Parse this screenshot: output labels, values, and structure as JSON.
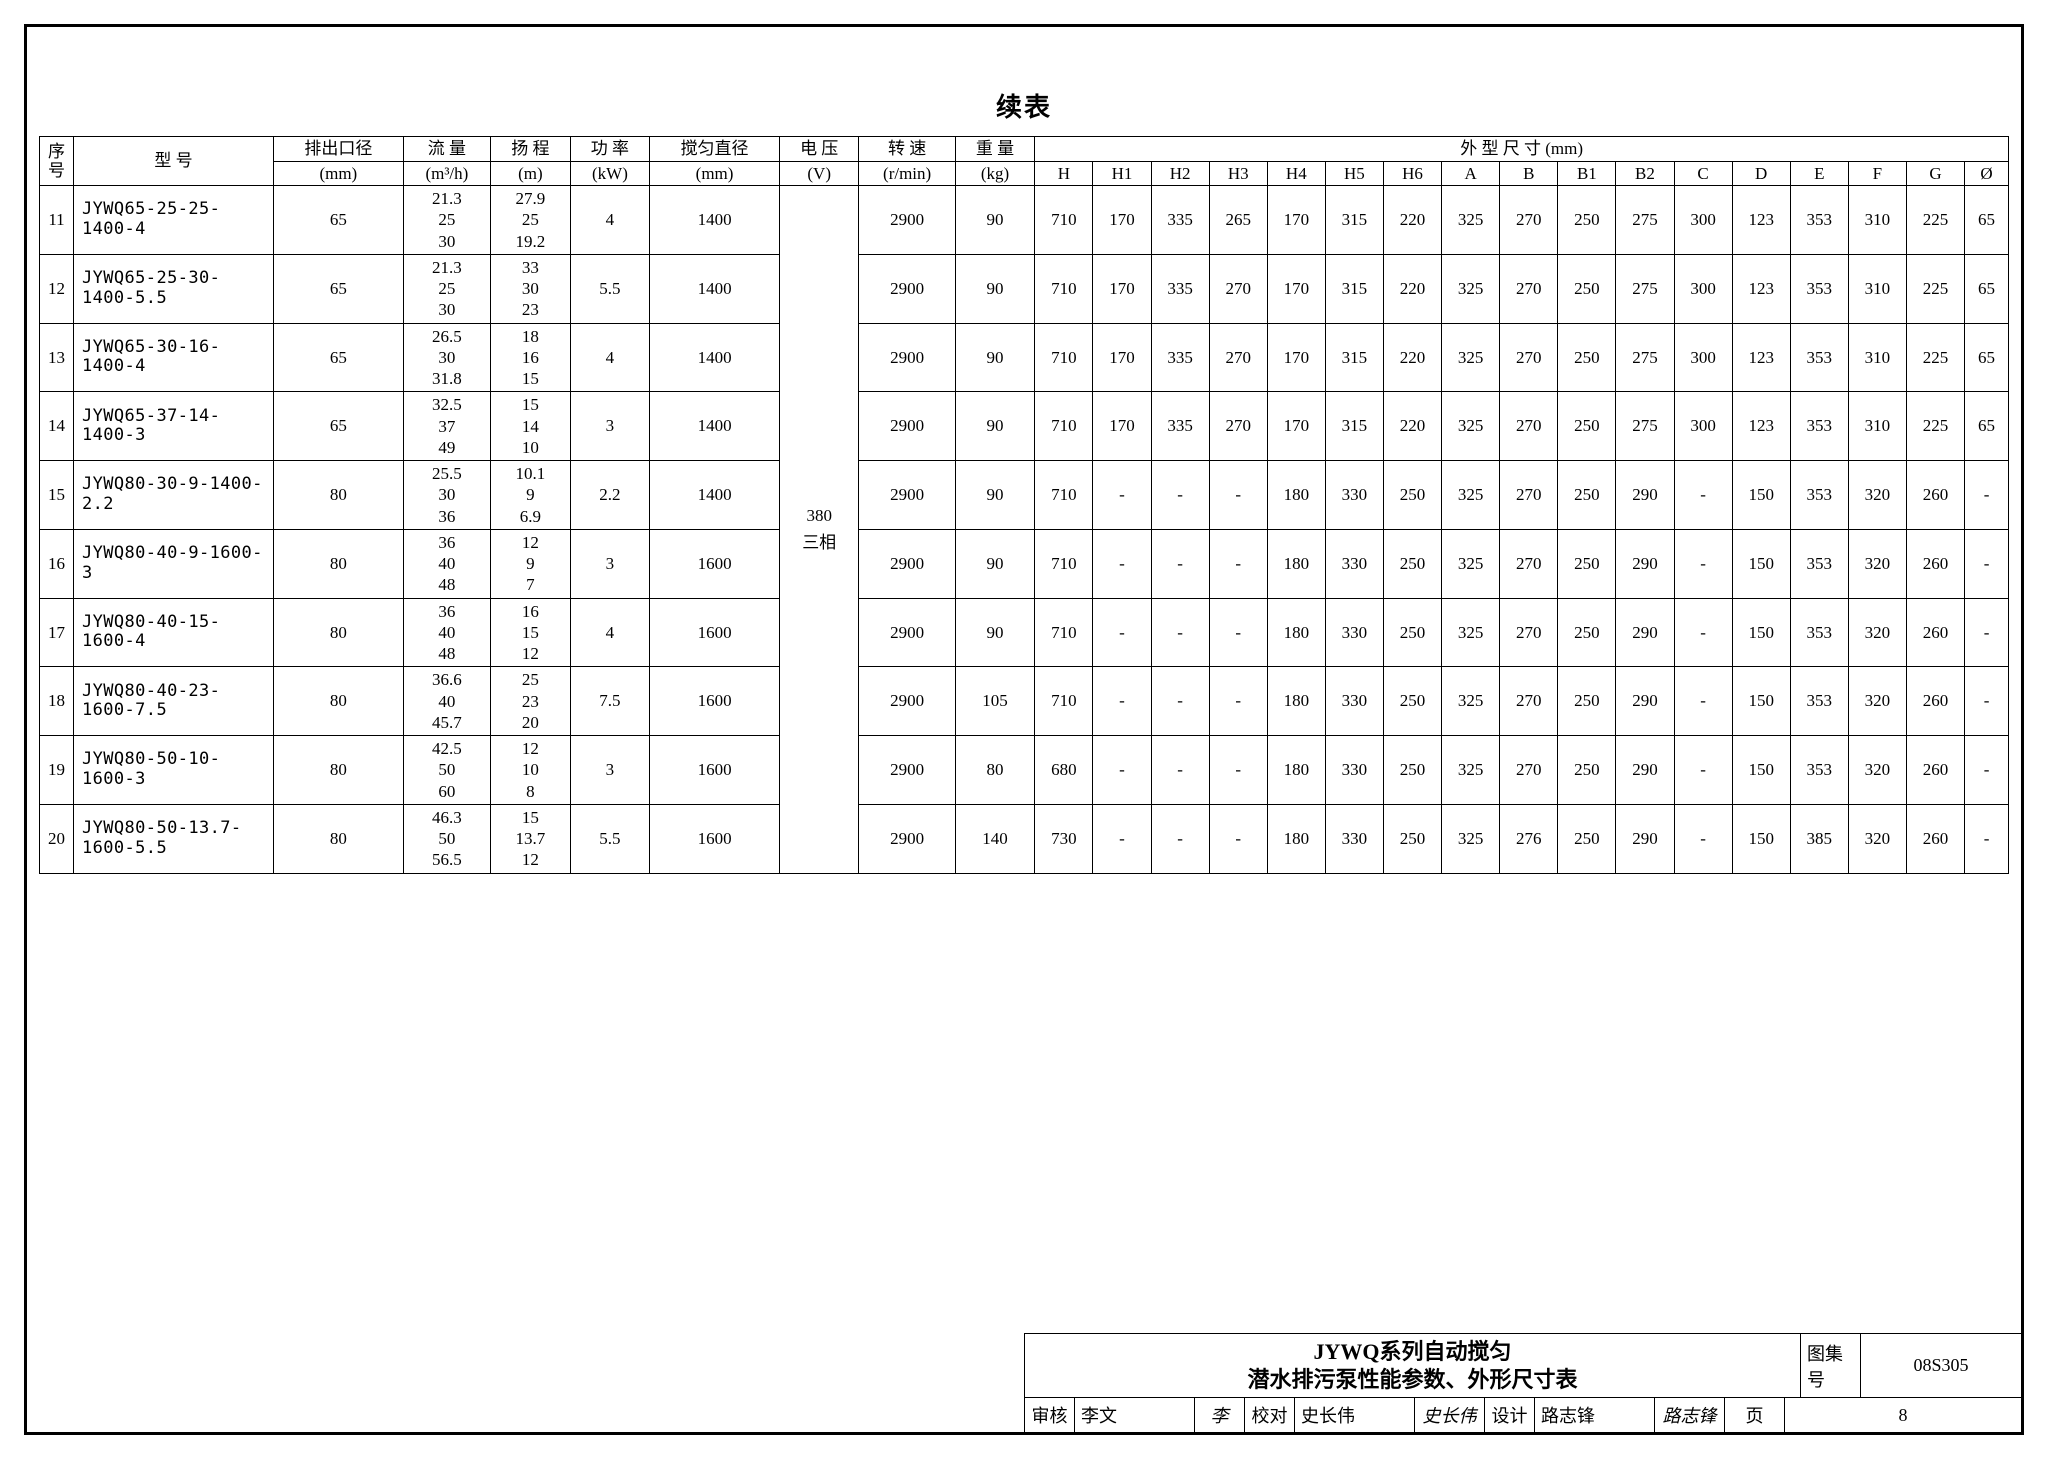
{
  "cont_title": "续表",
  "header_group_dim": "外 型 尺 寸  (mm)",
  "columns": {
    "seq": {
      "label": "序号",
      "unit": ""
    },
    "model": {
      "label": "型  号",
      "unit": ""
    },
    "outlet": {
      "label": "排出口径",
      "unit": "(mm)"
    },
    "flow": {
      "label": "流 量",
      "unit": "(m³/h)"
    },
    "head": {
      "label": "扬 程",
      "unit": "(m)"
    },
    "power": {
      "label": "功 率",
      "unit": "(kW)"
    },
    "stir": {
      "label": "搅匀直径",
      "unit": "(mm)"
    },
    "volt": {
      "label": "电 压",
      "unit": "(V)"
    },
    "speed": {
      "label": "转 速",
      "unit": "(r/min)"
    },
    "weight": {
      "label": "重 量",
      "unit": "(kg)"
    },
    "dims": [
      "H",
      "H1",
      "H2",
      "H3",
      "H4",
      "H5",
      "H6",
      "A",
      "B",
      "B1",
      "B2",
      "C",
      "D",
      "E",
      "F",
      "G",
      "Ø"
    ]
  },
  "voltage_shared": "380\n三相",
  "rows": [
    {
      "seq": "11",
      "model": "JYWQ65-25-25-1400-4",
      "outlet": "65",
      "flow": [
        "21.3",
        "25",
        "30"
      ],
      "head": [
        "27.9",
        "25",
        "19.2"
      ],
      "power": "4",
      "stir": "1400",
      "speed": "2900",
      "weight": "90",
      "H": "710",
      "H1": "170",
      "H2": "335",
      "H3": "265",
      "H4": "170",
      "H5": "315",
      "H6": "220",
      "A": "325",
      "B": "270",
      "B1": "250",
      "B2": "275",
      "C": "300",
      "D": "123",
      "E": "353",
      "F": "310",
      "G": "225",
      "O": "65"
    },
    {
      "seq": "12",
      "model": "JYWQ65-25-30-1400-5.5",
      "outlet": "65",
      "flow": [
        "21.3",
        "25",
        "30"
      ],
      "head": [
        "33",
        "30",
        "23"
      ],
      "power": "5.5",
      "stir": "1400",
      "speed": "2900",
      "weight": "90",
      "H": "710",
      "H1": "170",
      "H2": "335",
      "H3": "270",
      "H4": "170",
      "H5": "315",
      "H6": "220",
      "A": "325",
      "B": "270",
      "B1": "250",
      "B2": "275",
      "C": "300",
      "D": "123",
      "E": "353",
      "F": "310",
      "G": "225",
      "O": "65"
    },
    {
      "seq": "13",
      "model": "JYWQ65-30-16-1400-4",
      "outlet": "65",
      "flow": [
        "26.5",
        "30",
        "31.8"
      ],
      "head": [
        "18",
        "16",
        "15"
      ],
      "power": "4",
      "stir": "1400",
      "speed": "2900",
      "weight": "90",
      "H": "710",
      "H1": "170",
      "H2": "335",
      "H3": "270",
      "H4": "170",
      "H5": "315",
      "H6": "220",
      "A": "325",
      "B": "270",
      "B1": "250",
      "B2": "275",
      "C": "300",
      "D": "123",
      "E": "353",
      "F": "310",
      "G": "225",
      "O": "65"
    },
    {
      "seq": "14",
      "model": "JYWQ65-37-14-1400-3",
      "outlet": "65",
      "flow": [
        "32.5",
        "37",
        "49"
      ],
      "head": [
        "15",
        "14",
        "10"
      ],
      "power": "3",
      "stir": "1400",
      "speed": "2900",
      "weight": "90",
      "H": "710",
      "H1": "170",
      "H2": "335",
      "H3": "270",
      "H4": "170",
      "H5": "315",
      "H6": "220",
      "A": "325",
      "B": "270",
      "B1": "250",
      "B2": "275",
      "C": "300",
      "D": "123",
      "E": "353",
      "F": "310",
      "G": "225",
      "O": "65"
    },
    {
      "seq": "15",
      "model": "JYWQ80-30-9-1400-2.2",
      "outlet": "80",
      "flow": [
        "25.5",
        "30",
        "36"
      ],
      "head": [
        "10.1",
        "9",
        "6.9"
      ],
      "power": "2.2",
      "stir": "1400",
      "speed": "2900",
      "weight": "90",
      "H": "710",
      "H1": "-",
      "H2": "-",
      "H3": "-",
      "H4": "180",
      "H5": "330",
      "H6": "250",
      "A": "325",
      "B": "270",
      "B1": "250",
      "B2": "290",
      "C": "-",
      "D": "150",
      "E": "353",
      "F": "320",
      "G": "260",
      "O": "-"
    },
    {
      "seq": "16",
      "model": "JYWQ80-40-9-1600-3",
      "outlet": "80",
      "flow": [
        "36",
        "40",
        "48"
      ],
      "head": [
        "12",
        "9",
        "7"
      ],
      "power": "3",
      "stir": "1600",
      "speed": "2900",
      "weight": "90",
      "H": "710",
      "H1": "-",
      "H2": "-",
      "H3": "-",
      "H4": "180",
      "H5": "330",
      "H6": "250",
      "A": "325",
      "B": "270",
      "B1": "250",
      "B2": "290",
      "C": "-",
      "D": "150",
      "E": "353",
      "F": "320",
      "G": "260",
      "O": "-"
    },
    {
      "seq": "17",
      "model": "JYWQ80-40-15-1600-4",
      "outlet": "80",
      "flow": [
        "36",
        "40",
        "48"
      ],
      "head": [
        "16",
        "15",
        "12"
      ],
      "power": "4",
      "stir": "1600",
      "speed": "2900",
      "weight": "90",
      "H": "710",
      "H1": "-",
      "H2": "-",
      "H3": "-",
      "H4": "180",
      "H5": "330",
      "H6": "250",
      "A": "325",
      "B": "270",
      "B1": "250",
      "B2": "290",
      "C": "-",
      "D": "150",
      "E": "353",
      "F": "320",
      "G": "260",
      "O": "-"
    },
    {
      "seq": "18",
      "model": "JYWQ80-40-23-1600-7.5",
      "outlet": "80",
      "flow": [
        "36.6",
        "40",
        "45.7"
      ],
      "head": [
        "25",
        "23",
        "20"
      ],
      "power": "7.5",
      "stir": "1600",
      "speed": "2900",
      "weight": "105",
      "H": "710",
      "H1": "-",
      "H2": "-",
      "H3": "-",
      "H4": "180",
      "H5": "330",
      "H6": "250",
      "A": "325",
      "B": "270",
      "B1": "250",
      "B2": "290",
      "C": "-",
      "D": "150",
      "E": "353",
      "F": "320",
      "G": "260",
      "O": "-"
    },
    {
      "seq": "19",
      "model": "JYWQ80-50-10-1600-3",
      "outlet": "80",
      "flow": [
        "42.5",
        "50",
        "60"
      ],
      "head": [
        "12",
        "10",
        "8"
      ],
      "power": "3",
      "stir": "1600",
      "speed": "2900",
      "weight": "80",
      "H": "680",
      "H1": "-",
      "H2": "-",
      "H3": "-",
      "H4": "180",
      "H5": "330",
      "H6": "250",
      "A": "325",
      "B": "270",
      "B1": "250",
      "B2": "290",
      "C": "-",
      "D": "150",
      "E": "353",
      "F": "320",
      "G": "260",
      "O": "-"
    },
    {
      "seq": "20",
      "model": "JYWQ80-50-13.7-1600-5.5",
      "outlet": "80",
      "flow": [
        "46.3",
        "50",
        "56.5"
      ],
      "head": [
        "15",
        "13.7",
        "12"
      ],
      "power": "5.5",
      "stir": "1600",
      "speed": "2900",
      "weight": "140",
      "H": "730",
      "H1": "-",
      "H2": "-",
      "H3": "-",
      "H4": "180",
      "H5": "330",
      "H6": "250",
      "A": "325",
      "B": "276",
      "B1": "250",
      "B2": "290",
      "C": "-",
      "D": "150",
      "E": "385",
      "F": "320",
      "G": "260",
      "O": "-"
    }
  ],
  "title_block": {
    "main_title_line1": "JYWQ系列自动搅匀",
    "main_title_line2": "潜水排污泵性能参数、外形尺寸表",
    "drawing_no_label": "图集号",
    "drawing_no": "08S305",
    "review_label": "审核",
    "review_name": "李文",
    "review_sig": "李",
    "check_label": "校对",
    "check_name": "史长伟",
    "check_sig": "史长伟",
    "design_label": "设计",
    "design_name": "路志锋",
    "design_sig": "路志锋",
    "page_label": "页",
    "page_no": "8"
  }
}
